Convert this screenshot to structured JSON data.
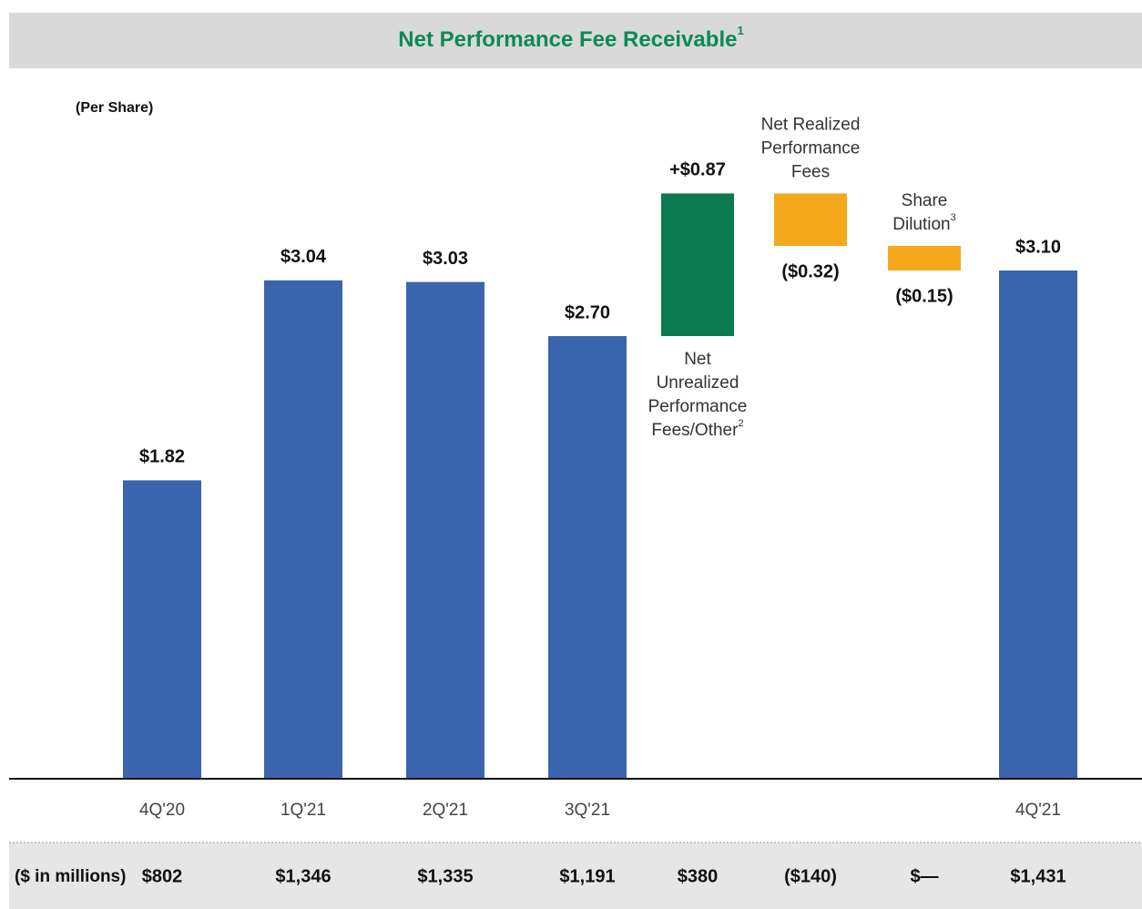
{
  "chart_data": {
    "type": "waterfall",
    "title": "Net Performance Fee Receivable",
    "title_superscript": "1",
    "subtitle": "(Per Share)",
    "categories": [
      "4Q'20",
      "1Q'21",
      "2Q'21",
      "3Q'21",
      "Net Unrealized Performance Fees/Other",
      "Net Realized Performance Fees",
      "Share Dilution",
      "4Q'21"
    ],
    "category_superscripts": {
      "4": "2",
      "6": "3"
    },
    "kinds": [
      "total",
      "total",
      "total",
      "total",
      "step",
      "step",
      "step",
      "total"
    ],
    "values": [
      1.82,
      3.04,
      3.03,
      2.7,
      0.87,
      -0.32,
      -0.15,
      3.1
    ],
    "value_labels": [
      "$1.82",
      "$3.04",
      "$3.03",
      "$2.70",
      "+$0.87",
      "($0.32)",
      "($0.15)",
      "$3.10"
    ],
    "colors": {
      "total": "#3a64ad",
      "increase": "#0b7a50",
      "decrease": "#f5a81c"
    },
    "ylim": [
      0,
      4.4
    ],
    "millions": {
      "label": "($ in millions)",
      "values": [
        802,
        1346,
        1335,
        1191,
        380,
        -140,
        null,
        1431
      ],
      "value_labels": [
        "$802",
        "$1,346",
        "$1,335",
        "$1,191",
        "$380",
        "($140)",
        "$—",
        "$1,431"
      ]
    }
  }
}
